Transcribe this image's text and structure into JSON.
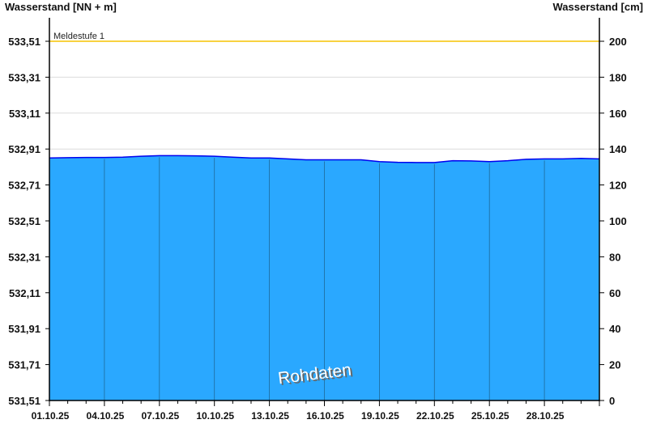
{
  "chart_data": {
    "type": "area",
    "ylabel_left": "Wasserstand [NN + m]",
    "ylabel_right": "Wasserstand [cm]",
    "left_ticks": [
      "531,51",
      "531,71",
      "531,91",
      "532,11",
      "532,31",
      "532,51",
      "532,71",
      "532,91",
      "533,11",
      "533,31",
      "533,51"
    ],
    "right_ticks": [
      0,
      20,
      40,
      60,
      80,
      100,
      120,
      140,
      160,
      180,
      200
    ],
    "ylim_cm": [
      0,
      213
    ],
    "x_ticks": [
      "01.10.25",
      "04.10.25",
      "07.10.25",
      "10.10.25",
      "13.10.25",
      "16.10.25",
      "19.10.25",
      "22.10.25",
      "25.10.25",
      "28.10.25"
    ],
    "x_range_days": [
      "01.10.25",
      "31.10.25"
    ],
    "series": [
      {
        "day": [
          1,
          2,
          3,
          4,
          5,
          6,
          7,
          8,
          9,
          10,
          11,
          12,
          13,
          14,
          15,
          16,
          17,
          18,
          19,
          20,
          21,
          22,
          23,
          24,
          25,
          26,
          27,
          28,
          29,
          30,
          31
        ],
        "values_cm": [
          135,
          135.2,
          135.3,
          135.3,
          135.5,
          136,
          136.3,
          136.3,
          136.2,
          136,
          135.5,
          135,
          135,
          134.5,
          134,
          134,
          134,
          134,
          133,
          132.6,
          132.5,
          132.5,
          133.5,
          133.4,
          133,
          133.5,
          134.3,
          134.5,
          134.5,
          134.8,
          134.5
        ]
      }
    ],
    "threshold": {
      "label": "Meldestufe 1",
      "value_cm": 200,
      "color": "#f5c400"
    },
    "fill_color": "#2aa8ff",
    "line_color": "#0000ee",
    "watermark": "Rohdaten",
    "grid": true
  }
}
